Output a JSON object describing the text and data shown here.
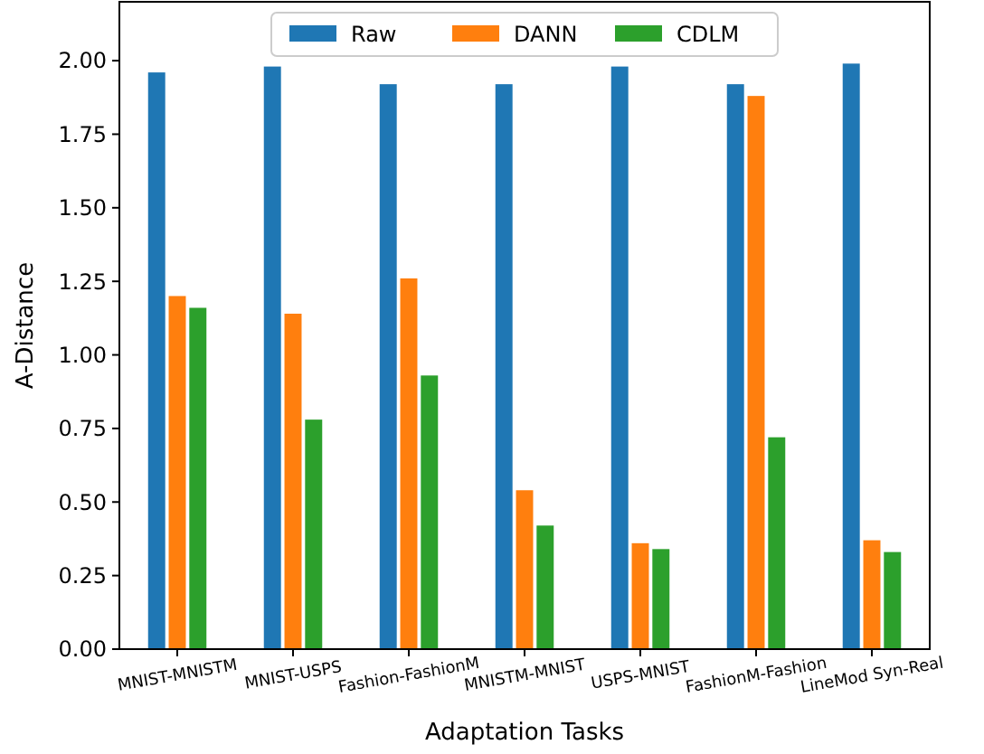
{
  "chart_data": {
    "type": "bar",
    "xlabel": "Adaptation Tasks",
    "ylabel": "A-Distance",
    "categories": [
      "MNIST-MNISTM",
      "MNIST-USPS",
      "Fashion-FashionM",
      "MNISTM-MNIST",
      "USPS-MNIST",
      "FashionM-Fashion",
      "LineMod Syn-Real"
    ],
    "series": [
      {
        "name": "Raw",
        "color": "#1f77b4",
        "values": [
          1.96,
          1.98,
          1.92,
          1.92,
          1.98,
          1.92,
          1.99
        ]
      },
      {
        "name": "DANN",
        "color": "#ff7f0e",
        "values": [
          1.2,
          1.14,
          1.26,
          0.54,
          0.36,
          1.88,
          0.37
        ]
      },
      {
        "name": "CDLM",
        "color": "#2ca02c",
        "values": [
          1.16,
          0.78,
          0.93,
          0.42,
          0.34,
          0.72,
          0.33
        ]
      }
    ],
    "ylim": [
      0,
      2.2
    ],
    "yticks": [
      {
        "value": 0,
        "label": "0.00"
      },
      {
        "value": 0.25,
        "label": "0.25"
      },
      {
        "value": 0.5,
        "label": "0.50"
      },
      {
        "value": 0.75,
        "label": "0.75"
      },
      {
        "value": 1,
        "label": "1.00"
      },
      {
        "value": 1.25,
        "label": "1.25"
      },
      {
        "value": 1.5,
        "label": "1.50"
      },
      {
        "value": 1.75,
        "label": "1.75"
      },
      {
        "value": 2,
        "label": "2.00"
      }
    ],
    "grid": false,
    "legend": "top"
  }
}
